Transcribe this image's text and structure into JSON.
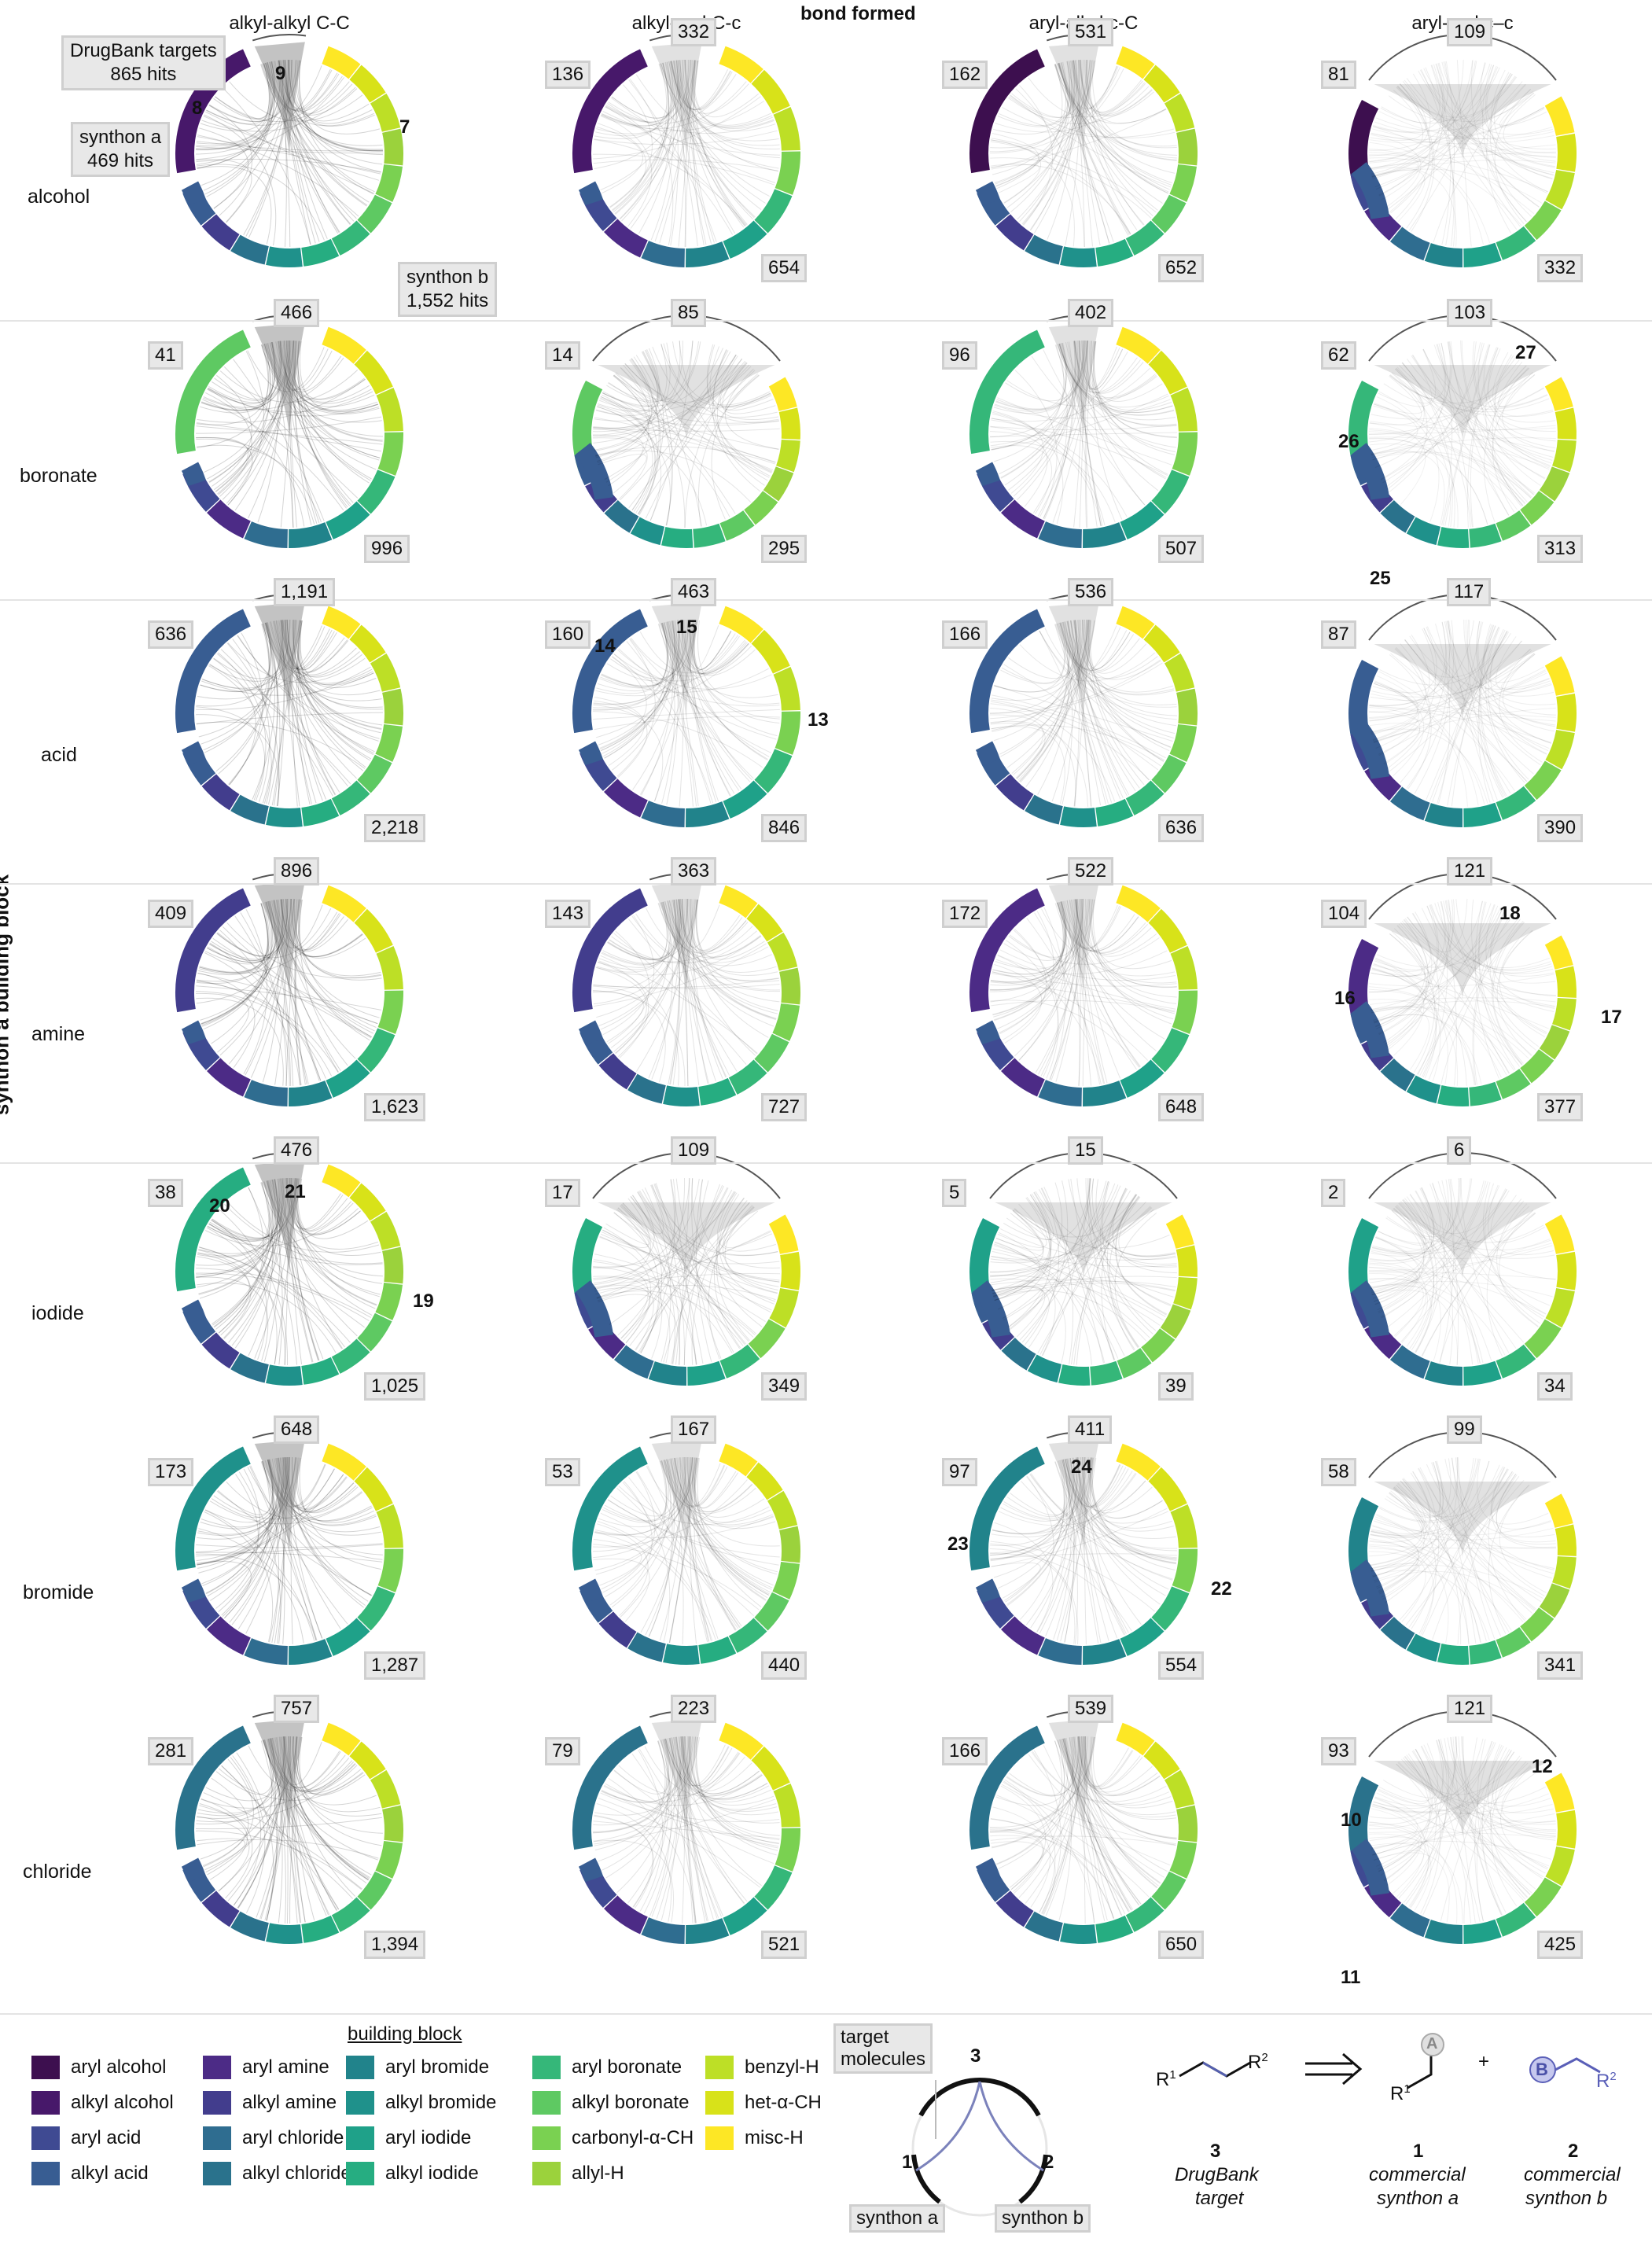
{
  "title": "bond formed",
  "y_axis_title": "synthon a building block",
  "columns": [
    "alkyl-alkyl C-C",
    "alkyl-aryl C-c",
    "aryl-alkyl c-C",
    "aryl-aryl c–c"
  ],
  "rows": [
    "alcohol",
    "boronate",
    "acid",
    "amine",
    "iodide",
    "bromide",
    "chloride"
  ],
  "cells": [
    [
      {
        "a": "",
        "b": "",
        "t": ""
      },
      {
        "a": "136",
        "b": "654",
        "t": "332"
      },
      {
        "a": "162",
        "b": "652",
        "t": "531"
      },
      {
        "a": "81",
        "b": "332",
        "t": "109"
      }
    ],
    [
      {
        "a": "41",
        "b": "996",
        "t": "466"
      },
      {
        "a": "14",
        "b": "295",
        "t": "85"
      },
      {
        "a": "96",
        "b": "507",
        "t": "402"
      },
      {
        "a": "62",
        "b": "313",
        "t": "103"
      }
    ],
    [
      {
        "a": "636",
        "b": "2,218",
        "t": "1,191"
      },
      {
        "a": "160",
        "b": "846",
        "t": "463"
      },
      {
        "a": "166",
        "b": "636",
        "t": "536"
      },
      {
        "a": "87",
        "b": "390",
        "t": "117"
      }
    ],
    [
      {
        "a": "409",
        "b": "1,623",
        "t": "896"
      },
      {
        "a": "143",
        "b": "727",
        "t": "363"
      },
      {
        "a": "172",
        "b": "648",
        "t": "522"
      },
      {
        "a": "104",
        "b": "377",
        "t": "121"
      }
    ],
    [
      {
        "a": "38",
        "b": "1,025",
        "t": "476"
      },
      {
        "a": "17",
        "b": "349",
        "t": "109"
      },
      {
        "a": "5",
        "b": "39",
        "t": "15"
      },
      {
        "a": "2",
        "b": "34",
        "t": "6"
      }
    ],
    [
      {
        "a": "173",
        "b": "1,287",
        "t": "648"
      },
      {
        "a": "53",
        "b": "440",
        "t": "167"
      },
      {
        "a": "97",
        "b": "554",
        "t": "411"
      },
      {
        "a": "58",
        "b": "341",
        "t": "99"
      }
    ],
    [
      {
        "a": "281",
        "b": "1,394",
        "t": "757"
      },
      {
        "a": "79",
        "b": "521",
        "t": "223"
      },
      {
        "a": "166",
        "b": "650",
        "t": "539"
      },
      {
        "a": "93",
        "b": "425",
        "t": "121"
      }
    ]
  ],
  "callouts": {
    "drugbank": "DrugBank targets\n865 hits",
    "synthon_a": "synthon a\n469 hits",
    "synthon_b": "synthon b\n1,552 hits"
  },
  "annotations": [
    {
      "id": "n9",
      "text": "9"
    },
    {
      "id": "n8",
      "text": "8"
    },
    {
      "id": "n7",
      "text": "7"
    },
    {
      "id": "n27",
      "text": "27"
    },
    {
      "id": "n26",
      "text": "26"
    },
    {
      "id": "n25",
      "text": "25"
    },
    {
      "id": "n14",
      "text": "14"
    },
    {
      "id": "n15",
      "text": "15"
    },
    {
      "id": "n13",
      "text": "13"
    },
    {
      "id": "n18",
      "text": "18"
    },
    {
      "id": "n16",
      "text": "16"
    },
    {
      "id": "n17",
      "text": "17"
    },
    {
      "id": "n20",
      "text": "20"
    },
    {
      "id": "n21",
      "text": "21"
    },
    {
      "id": "n19",
      "text": "19"
    },
    {
      "id": "n24",
      "text": "24"
    },
    {
      "id": "n23",
      "text": "23"
    },
    {
      "id": "n22",
      "text": "22"
    },
    {
      "id": "n12",
      "text": "12"
    },
    {
      "id": "n10",
      "text": "10"
    },
    {
      "id": "n11",
      "text": "11"
    }
  ],
  "legend": {
    "title": "building block",
    "items": [
      {
        "label": "aryl alcohol",
        "color": "#3d0f4f"
      },
      {
        "label": "alkyl alcohol",
        "color": "#47186a"
      },
      {
        "label": "aryl acid",
        "color": "#3f4a92"
      },
      {
        "label": "alkyl acid",
        "color": "#385d92"
      },
      {
        "label": "aryl amine",
        "color": "#4c2b86"
      },
      {
        "label": "alkyl amine",
        "color": "#423d8d"
      },
      {
        "label": "aryl chloride",
        "color": "#2f6d90"
      },
      {
        "label": "alkyl chloride",
        "color": "#2a728c"
      },
      {
        "label": "aryl bromide",
        "color": "#21838b"
      },
      {
        "label": "alkyl bromide",
        "color": "#1f918b"
      },
      {
        "label": "aryl iodide",
        "color": "#1fa189"
      },
      {
        "label": "alkyl iodide",
        "color": "#26ad81"
      },
      {
        "label": "aryl boronate",
        "color": "#35b779"
      },
      {
        "label": "alkyl boronate",
        "color": "#5ec962"
      },
      {
        "label": "carbonyl-α-CH",
        "color": "#7ad151"
      },
      {
        "label": "allyl-H",
        "color": "#9bd23c"
      },
      {
        "label": "benzyl-H",
        "color": "#bddf26"
      },
      {
        "label": "het-α-CH",
        "color": "#d8e219"
      },
      {
        "label": "misc-H",
        "color": "#fde725"
      }
    ]
  },
  "schematic": {
    "target_label": "target\nmolecules",
    "n3": "3",
    "n1": "1",
    "n2": "2",
    "synthon_a": "synthon a",
    "synthon_b": "synthon b"
  },
  "scheme": {
    "r1": "R",
    "r1_sup": "1",
    "r2": "R",
    "r2_sup": "2",
    "c3_num": "3",
    "c3_l1": "DrugBank",
    "c3_l2": "target",
    "c1_num": "1",
    "c1_l1": "commercial",
    "c1_l2": "synthon a",
    "c2_num": "2",
    "c2_l1": "commercial",
    "c2_l2": "synthon b",
    "a_letter": "A",
    "b_letter": "B",
    "plus": "+"
  }
}
